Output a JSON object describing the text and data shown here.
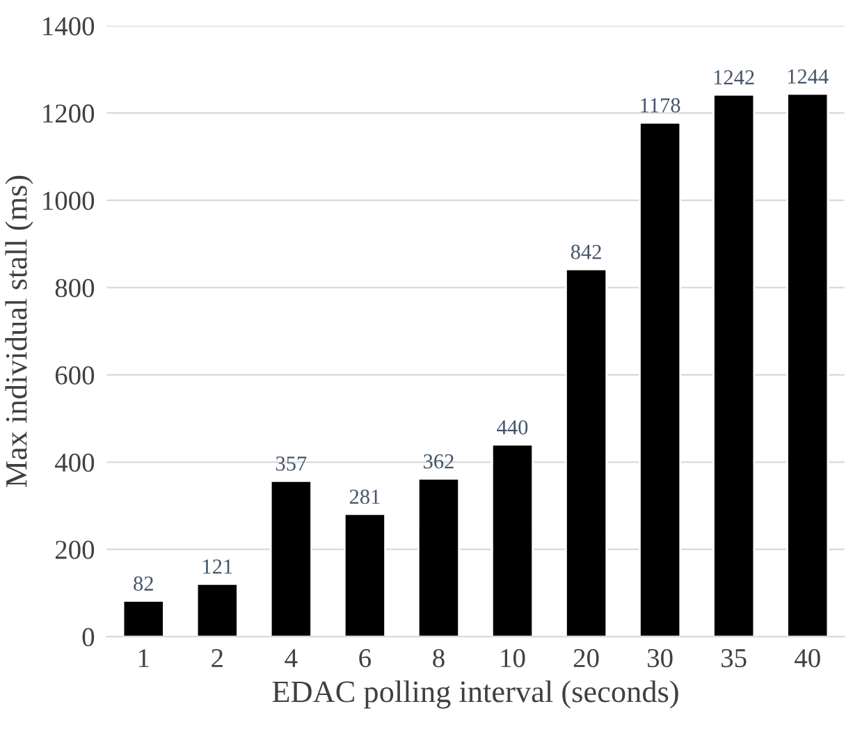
{
  "chart_data": {
    "type": "bar",
    "xlabel": "EDAC polling interval (seconds)",
    "ylabel": "Max individual stall (ms)",
    "categories": [
      "1",
      "2",
      "4",
      "6",
      "8",
      "10",
      "20",
      "30",
      "35",
      "40"
    ],
    "values": [
      82,
      121,
      357,
      281,
      362,
      440,
      842,
      1178,
      1242,
      1244
    ],
    "color": "#000000",
    "ylim": [
      0,
      1400
    ],
    "yticks": [
      0,
      200,
      400,
      600,
      800,
      1000,
      1200,
      1400
    ],
    "grid": "y",
    "data_labels": true
  }
}
